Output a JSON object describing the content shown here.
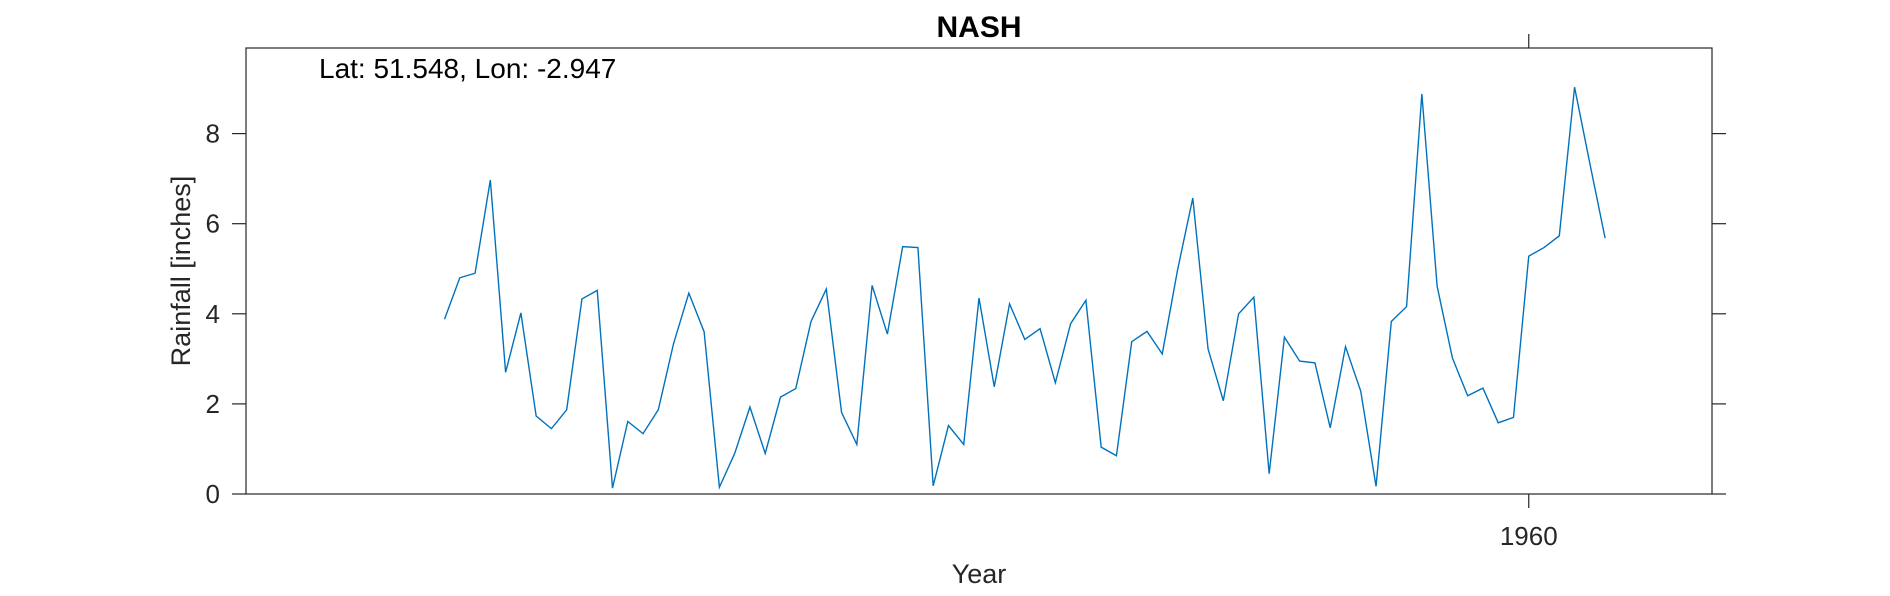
{
  "chart_data": {
    "type": "line",
    "title": "NASH",
    "xlabel": "Year",
    "ylabel": "Rainfall [inches]",
    "annotation": "Lat: 51.548, Lon: -2.947",
    "xlim": [
      1876,
      1972
    ],
    "ylim": [
      0,
      9.9
    ],
    "x_ticks": [
      1960
    ],
    "x_tick_labels": [
      "1960"
    ],
    "y_ticks": [
      0,
      2,
      4,
      6,
      8
    ],
    "y_tick_labels": [
      "0",
      "2",
      "4",
      "6",
      "8"
    ],
    "grid": false,
    "legend": "none",
    "line_color": "#0072BD",
    "axis_color": "#262626",
    "x": [
      1889,
      1890,
      1891,
      1892,
      1893,
      1894,
      1895,
      1896,
      1897,
      1898,
      1899,
      1900,
      1901,
      1902,
      1903,
      1904,
      1905,
      1906,
      1907,
      1908,
      1909,
      1910,
      1911,
      1912,
      1913,
      1914,
      1915,
      1916,
      1917,
      1918,
      1919,
      1920,
      1921,
      1922,
      1923,
      1924,
      1925,
      1926,
      1927,
      1928,
      1929,
      1930,
      1931,
      1932,
      1933,
      1934,
      1935,
      1936,
      1937,
      1938,
      1939,
      1940,
      1941,
      1942,
      1943,
      1944,
      1945,
      1946,
      1947,
      1948,
      1949,
      1950,
      1951,
      1952,
      1953,
      1954,
      1955,
      1956,
      1957,
      1958,
      1959,
      1960,
      1961,
      1962,
      1963,
      1964,
      1965
    ],
    "series": [
      {
        "values": [
          3.88,
          4.8,
          4.9,
          6.97,
          2.7,
          4.02,
          1.73,
          1.45,
          1.87,
          4.33,
          4.52,
          0.13,
          1.61,
          1.34,
          1.87,
          3.34,
          4.46,
          3.6,
          0.15,
          0.9,
          1.93,
          0.9,
          2.15,
          2.34,
          3.83,
          4.55,
          1.81,
          1.1,
          4.63,
          3.55,
          5.49,
          5.47,
          0.18,
          1.52,
          1.1,
          4.35,
          2.38,
          4.22,
          3.43,
          3.67,
          2.47,
          3.78,
          4.3,
          1.04,
          0.85,
          3.38,
          3.61,
          3.11,
          4.97,
          6.57,
          3.22,
          2.07,
          4.0,
          4.37,
          0.45,
          3.48,
          2.95,
          2.91,
          1.47,
          3.27,
          2.28,
          0.17,
          3.83,
          4.16,
          8.88,
          4.61,
          3.02,
          2.18,
          2.35,
          1.58,
          1.7,
          5.28,
          5.47,
          5.73,
          9.03,
          7.34,
          5.68
        ]
      }
    ]
  }
}
